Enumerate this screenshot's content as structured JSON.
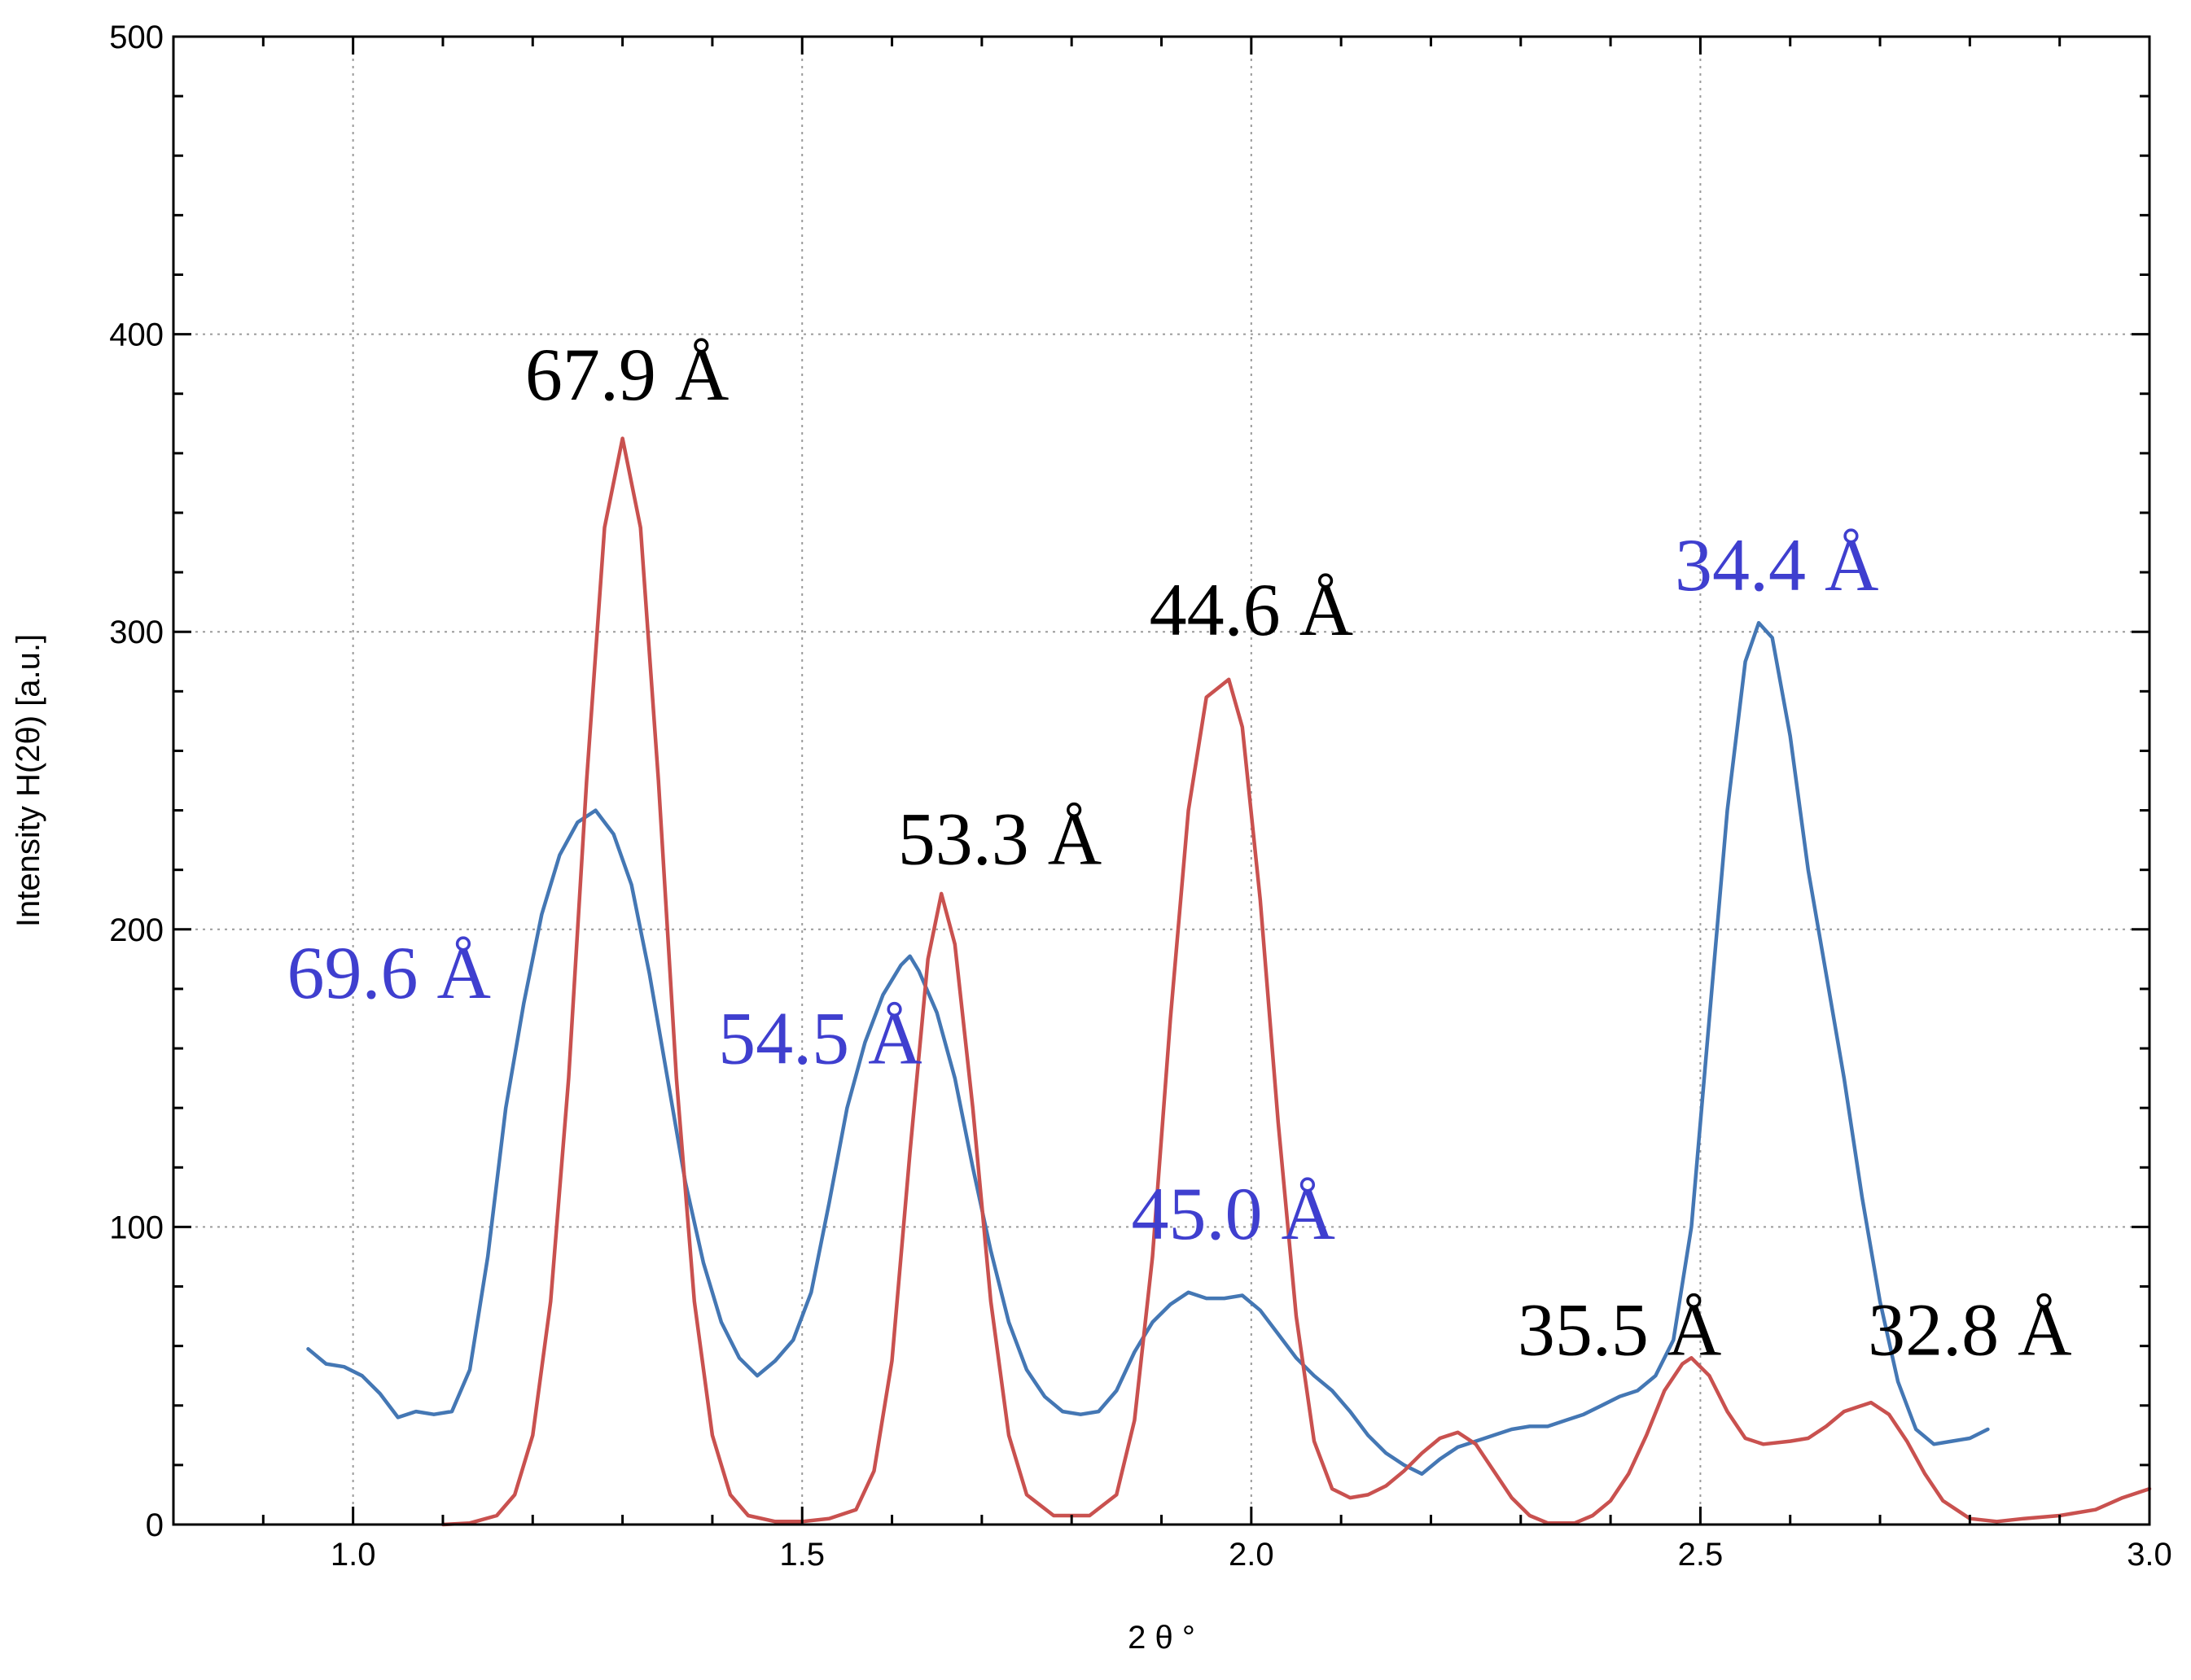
{
  "chart_data": {
    "type": "line",
    "xlabel": "2 θ °",
    "ylabel": "Intensity H(2θ) [a.u.]",
    "xlim": [
      0.8,
      3.0
    ],
    "ylim": [
      0,
      500
    ],
    "xticks": [
      "1.0",
      "1.5",
      "2.0",
      "2.5",
      "3.0"
    ],
    "xtick_values": [
      1.0,
      1.5,
      2.0,
      2.5,
      3.0
    ],
    "yticks": [
      "0",
      "100",
      "200",
      "300",
      "400",
      "500"
    ],
    "ytick_values": [
      0,
      100,
      200,
      300,
      400,
      500
    ],
    "grid": true,
    "series": [
      {
        "color": "#4477b4",
        "points": [
          [
            0.95,
            59
          ],
          [
            0.97,
            54
          ],
          [
            0.99,
            53
          ],
          [
            1.01,
            50
          ],
          [
            1.03,
            44
          ],
          [
            1.05,
            36
          ],
          [
            1.07,
            38
          ],
          [
            1.09,
            37
          ],
          [
            1.11,
            38
          ],
          [
            1.13,
            52
          ],
          [
            1.15,
            90
          ],
          [
            1.17,
            140
          ],
          [
            1.19,
            175
          ],
          [
            1.21,
            205
          ],
          [
            1.23,
            225
          ],
          [
            1.25,
            236
          ],
          [
            1.27,
            240
          ],
          [
            1.29,
            232
          ],
          [
            1.31,
            215
          ],
          [
            1.33,
            185
          ],
          [
            1.35,
            150
          ],
          [
            1.37,
            115
          ],
          [
            1.39,
            88
          ],
          [
            1.41,
            68
          ],
          [
            1.43,
            56
          ],
          [
            1.45,
            50
          ],
          [
            1.47,
            55
          ],
          [
            1.49,
            62
          ],
          [
            1.51,
            78
          ],
          [
            1.53,
            108
          ],
          [
            1.55,
            140
          ],
          [
            1.57,
            162
          ],
          [
            1.59,
            178
          ],
          [
            1.61,
            188
          ],
          [
            1.62,
            191
          ],
          [
            1.63,
            186
          ],
          [
            1.65,
            172
          ],
          [
            1.67,
            150
          ],
          [
            1.69,
            120
          ],
          [
            1.71,
            92
          ],
          [
            1.73,
            68
          ],
          [
            1.75,
            52
          ],
          [
            1.77,
            43
          ],
          [
            1.79,
            38
          ],
          [
            1.81,
            37
          ],
          [
            1.83,
            38
          ],
          [
            1.85,
            45
          ],
          [
            1.87,
            58
          ],
          [
            1.89,
            68
          ],
          [
            1.91,
            74
          ],
          [
            1.93,
            78
          ],
          [
            1.95,
            76
          ],
          [
            1.97,
            76
          ],
          [
            1.99,
            77
          ],
          [
            2.01,
            72
          ],
          [
            2.03,
            64
          ],
          [
            2.05,
            56
          ],
          [
            2.07,
            50
          ],
          [
            2.09,
            45
          ],
          [
            2.11,
            38
          ],
          [
            2.13,
            30
          ],
          [
            2.15,
            24
          ],
          [
            2.17,
            20
          ],
          [
            2.19,
            17
          ],
          [
            2.21,
            22
          ],
          [
            2.23,
            26
          ],
          [
            2.25,
            28
          ],
          [
            2.27,
            30
          ],
          [
            2.29,
            32
          ],
          [
            2.31,
            33
          ],
          [
            2.33,
            33
          ],
          [
            2.35,
            35
          ],
          [
            2.37,
            37
          ],
          [
            2.39,
            40
          ],
          [
            2.41,
            43
          ],
          [
            2.43,
            45
          ],
          [
            2.45,
            50
          ],
          [
            2.47,
            62
          ],
          [
            2.49,
            100
          ],
          [
            2.51,
            170
          ],
          [
            2.53,
            240
          ],
          [
            2.55,
            290
          ],
          [
            2.565,
            303
          ],
          [
            2.58,
            298
          ],
          [
            2.6,
            265
          ],
          [
            2.62,
            220
          ],
          [
            2.64,
            185
          ],
          [
            2.66,
            150
          ],
          [
            2.68,
            110
          ],
          [
            2.7,
            75
          ],
          [
            2.72,
            48
          ],
          [
            2.74,
            32
          ],
          [
            2.76,
            27
          ],
          [
            2.78,
            28
          ],
          [
            2.8,
            29
          ],
          [
            2.82,
            32
          ]
        ]
      },
      {
        "color": "#c9514f",
        "points": [
          [
            1.1,
            0
          ],
          [
            1.13,
            0.5
          ],
          [
            1.16,
            3
          ],
          [
            1.18,
            10
          ],
          [
            1.2,
            30
          ],
          [
            1.22,
            75
          ],
          [
            1.24,
            150
          ],
          [
            1.26,
            250
          ],
          [
            1.28,
            335
          ],
          [
            1.3,
            365
          ],
          [
            1.32,
            335
          ],
          [
            1.34,
            250
          ],
          [
            1.36,
            150
          ],
          [
            1.38,
            75
          ],
          [
            1.4,
            30
          ],
          [
            1.42,
            10
          ],
          [
            1.44,
            3
          ],
          [
            1.47,
            1
          ],
          [
            1.5,
            1
          ],
          [
            1.53,
            2
          ],
          [
            1.56,
            5
          ],
          [
            1.58,
            18
          ],
          [
            1.6,
            55
          ],
          [
            1.62,
            125
          ],
          [
            1.64,
            190
          ],
          [
            1.655,
            212
          ],
          [
            1.67,
            195
          ],
          [
            1.69,
            140
          ],
          [
            1.71,
            75
          ],
          [
            1.73,
            30
          ],
          [
            1.75,
            10
          ],
          [
            1.78,
            3
          ],
          [
            1.82,
            3
          ],
          [
            1.85,
            10
          ],
          [
            1.87,
            35
          ],
          [
            1.89,
            90
          ],
          [
            1.91,
            170
          ],
          [
            1.93,
            240
          ],
          [
            1.95,
            278
          ],
          [
            1.975,
            284
          ],
          [
            1.99,
            268
          ],
          [
            2.01,
            210
          ],
          [
            2.03,
            135
          ],
          [
            2.05,
            70
          ],
          [
            2.07,
            28
          ],
          [
            2.09,
            12
          ],
          [
            2.11,
            9
          ],
          [
            2.13,
            10
          ],
          [
            2.15,
            13
          ],
          [
            2.17,
            18
          ],
          [
            2.19,
            24
          ],
          [
            2.21,
            29
          ],
          [
            2.23,
            31
          ],
          [
            2.25,
            27
          ],
          [
            2.27,
            18
          ],
          [
            2.29,
            9
          ],
          [
            2.31,
            3
          ],
          [
            2.33,
            0.5
          ],
          [
            2.36,
            0.5
          ],
          [
            2.38,
            3
          ],
          [
            2.4,
            8
          ],
          [
            2.42,
            17
          ],
          [
            2.44,
            30
          ],
          [
            2.46,
            45
          ],
          [
            2.48,
            54
          ],
          [
            2.49,
            56
          ],
          [
            2.51,
            50
          ],
          [
            2.53,
            38
          ],
          [
            2.55,
            29
          ],
          [
            2.57,
            27
          ],
          [
            2.6,
            28
          ],
          [
            2.62,
            29
          ],
          [
            2.64,
            33
          ],
          [
            2.66,
            38
          ],
          [
            2.69,
            41
          ],
          [
            2.71,
            37
          ],
          [
            2.73,
            28
          ],
          [
            2.75,
            17
          ],
          [
            2.77,
            8
          ],
          [
            2.8,
            2
          ],
          [
            2.83,
            1
          ],
          [
            2.86,
            2
          ],
          [
            2.9,
            3
          ],
          [
            2.94,
            5
          ],
          [
            2.97,
            9
          ],
          [
            3.0,
            12
          ]
        ]
      }
    ],
    "annotations": [
      {
        "text": "67.9 Å",
        "x": 1.305,
        "y": 378,
        "color": "#000000"
      },
      {
        "text": "53.3 Å",
        "x": 1.72,
        "y": 222,
        "color": "#000000"
      },
      {
        "text": "44.6 Å",
        "x": 2.0,
        "y": 299,
        "color": "#000000"
      },
      {
        "text": "35.5 Å",
        "x": 2.41,
        "y": 57,
        "color": "#000000"
      },
      {
        "text": "32.8 Å",
        "x": 2.8,
        "y": 57,
        "color": "#000000"
      },
      {
        "text": "69.6 Å",
        "x": 1.04,
        "y": 177,
        "color": "#3f3fcf"
      },
      {
        "text": "54.5 Å",
        "x": 1.52,
        "y": 155,
        "color": "#3f3fcf"
      },
      {
        "text": "45.0 Å",
        "x": 1.98,
        "y": 96,
        "color": "#3f3fcf"
      },
      {
        "text": "34.4 Å",
        "x": 2.585,
        "y": 314,
        "color": "#3f3fcf"
      }
    ]
  }
}
